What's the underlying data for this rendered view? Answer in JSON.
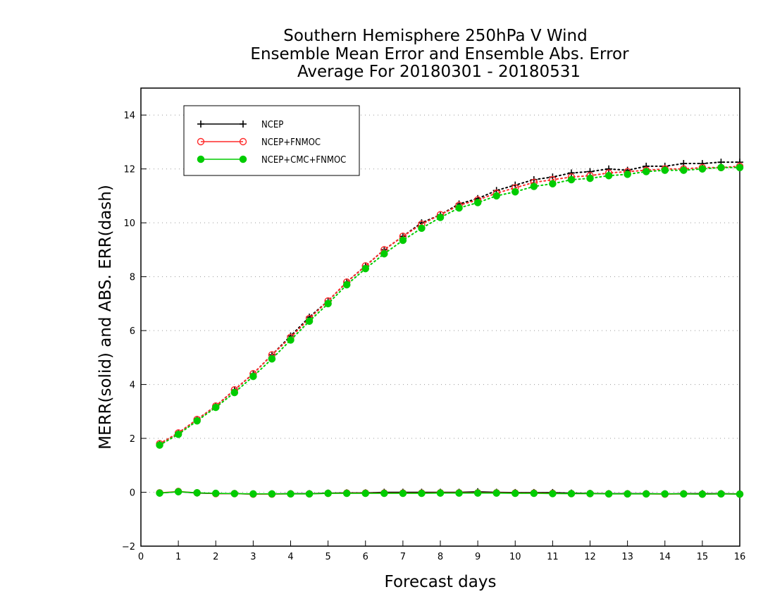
{
  "chart_data": {
    "type": "line",
    "title": [
      "Southern Hemisphere 250hPa V Wind",
      "Ensemble Mean Error and Ensemble Abs. Error",
      "Average For 20180301 - 20180531"
    ],
    "xlabel": "Forecast days",
    "ylabel": "MERR(solid) and ABS. ERR(dash)",
    "xlim": [
      0,
      16
    ],
    "ylim": [
      -2,
      15
    ],
    "xticks": [
      0,
      1,
      2,
      3,
      4,
      5,
      6,
      7,
      8,
      9,
      10,
      11,
      12,
      13,
      14,
      15,
      16
    ],
    "yticks": [
      -2,
      0,
      2,
      4,
      6,
      8,
      10,
      12,
      14
    ],
    "grid": true,
    "legend_position": "top-left",
    "x": [
      0.5,
      1,
      1.5,
      2,
      2.5,
      3,
      3.5,
      4,
      4.5,
      5,
      5.5,
      6,
      6.5,
      7,
      7.5,
      8,
      8.5,
      9,
      9.5,
      10,
      10.5,
      11,
      11.5,
      12,
      12.5,
      13,
      13.5,
      14,
      14.5,
      15,
      15.5,
      16
    ],
    "series": [
      {
        "name": "NCEP",
        "color": "#000000",
        "marker": "plus",
        "abs_err": [
          1.8,
          2.2,
          2.7,
          3.2,
          3.8,
          4.4,
          5.1,
          5.8,
          6.5,
          7.1,
          7.8,
          8.4,
          9.0,
          9.5,
          10.0,
          10.3,
          10.7,
          10.9,
          11.2,
          11.4,
          11.6,
          11.7,
          11.85,
          11.9,
          12.0,
          11.95,
          12.1,
          12.1,
          12.2,
          12.2,
          12.25,
          12.25
        ],
        "mean_err": [
          -0.03,
          0.02,
          -0.03,
          -0.05,
          -0.05,
          -0.07,
          -0.06,
          -0.05,
          -0.05,
          -0.03,
          -0.02,
          -0.02,
          0.0,
          0.0,
          0.0,
          0.0,
          0.0,
          0.02,
          0.0,
          -0.01,
          -0.01,
          -0.01,
          -0.03,
          -0.04,
          -0.05,
          -0.05,
          -0.05,
          -0.06,
          -0.05,
          -0.05,
          -0.05,
          -0.06
        ]
      },
      {
        "name": "NCEP+FNMOC",
        "color": "#ff2a2a",
        "marker": "open-circle",
        "abs_err": [
          1.8,
          2.2,
          2.7,
          3.2,
          3.8,
          4.4,
          5.1,
          5.75,
          6.45,
          7.1,
          7.8,
          8.4,
          9.0,
          9.5,
          9.95,
          10.3,
          10.65,
          10.85,
          11.1,
          11.3,
          11.5,
          11.6,
          11.7,
          11.75,
          11.85,
          11.9,
          11.95,
          12.0,
          12.0,
          12.05,
          12.05,
          12.1
        ],
        "mean_err": [
          -0.02,
          0.03,
          -0.02,
          -0.05,
          -0.05,
          -0.07,
          -0.07,
          -0.06,
          -0.06,
          -0.04,
          -0.03,
          -0.03,
          -0.03,
          -0.03,
          -0.03,
          -0.02,
          -0.02,
          -0.02,
          -0.02,
          -0.03,
          -0.03,
          -0.04,
          -0.05,
          -0.05,
          -0.06,
          -0.06,
          -0.06,
          -0.07,
          -0.06,
          -0.07,
          -0.06,
          -0.07
        ]
      },
      {
        "name": "NCEP+CMC+FNMOC",
        "color": "#00cc00",
        "marker": "filled-circle",
        "abs_err": [
          1.75,
          2.15,
          2.65,
          3.15,
          3.7,
          4.3,
          4.95,
          5.65,
          6.35,
          7.0,
          7.7,
          8.3,
          8.85,
          9.35,
          9.8,
          10.2,
          10.55,
          10.75,
          11.0,
          11.15,
          11.35,
          11.45,
          11.6,
          11.65,
          11.75,
          11.8,
          11.9,
          11.95,
          11.95,
          12.0,
          12.05,
          12.05
        ],
        "mean_err": [
          -0.03,
          0.02,
          -0.02,
          -0.04,
          -0.05,
          -0.06,
          -0.06,
          -0.06,
          -0.06,
          -0.04,
          -0.04,
          -0.04,
          -0.04,
          -0.04,
          -0.04,
          -0.03,
          -0.03,
          -0.03,
          -0.03,
          -0.04,
          -0.04,
          -0.05,
          -0.05,
          -0.05,
          -0.06,
          -0.06,
          -0.06,
          -0.06,
          -0.06,
          -0.07,
          -0.06,
          -0.07
        ]
      }
    ]
  }
}
